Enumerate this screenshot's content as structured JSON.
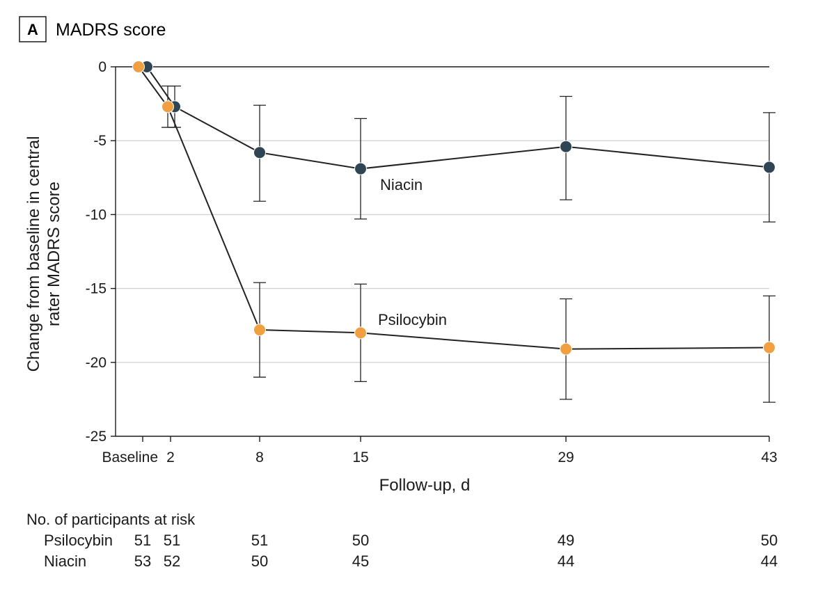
{
  "panel": {
    "letter": "A",
    "title": "MADRS score"
  },
  "chart_data": {
    "type": "line",
    "title": "MADRS score",
    "xlabel": "Follow-up, d",
    "ylabel_lines": [
      "Change from baseline in central",
      "rater MADRS score"
    ],
    "ylim": [
      -25,
      0
    ],
    "yticks": [
      0,
      -5,
      -10,
      -15,
      -20,
      -25
    ],
    "ytick_labels": [
      "0",
      "-5",
      "-10",
      "-15",
      "-20",
      "-25"
    ],
    "xticks": [
      0,
      2,
      8,
      15,
      29,
      43
    ],
    "xtick_labels": [
      "Baseline",
      "2",
      "8",
      "15",
      "29",
      "43"
    ],
    "grid": true,
    "series": [
      {
        "name": "Niacin",
        "color": "#2f4553",
        "x": [
          0,
          2,
          8,
          15,
          29,
          43
        ],
        "y": [
          0,
          -2.7,
          -5.8,
          -6.9,
          -5.4,
          -6.8
        ],
        "ci_low": [
          null,
          -4.1,
          -9.1,
          -10.3,
          -9.0,
          -10.5
        ],
        "ci_high": [
          null,
          -1.3,
          -2.6,
          -3.5,
          -2.0,
          -3.1
        ]
      },
      {
        "name": "Psilocybin",
        "color": "#f0a040",
        "x": [
          0,
          2,
          8,
          15,
          29,
          43
        ],
        "y": [
          0,
          -2.7,
          -17.8,
          -18.0,
          -19.1,
          -19.0
        ],
        "ci_low": [
          null,
          -4.1,
          -21.0,
          -21.3,
          -22.5,
          -22.7
        ],
        "ci_high": [
          null,
          -1.3,
          -14.6,
          -14.7,
          -15.7,
          -15.5
        ]
      }
    ]
  },
  "risk_table": {
    "title": "No. of participants at risk",
    "rows": [
      {
        "label": "Psilocybin",
        "values": [
          "51",
          "51",
          "51",
          "50",
          "49",
          "50"
        ]
      },
      {
        "label": "Niacin",
        "values": [
          "53",
          "52",
          "50",
          "45",
          "44",
          "44"
        ]
      }
    ]
  }
}
